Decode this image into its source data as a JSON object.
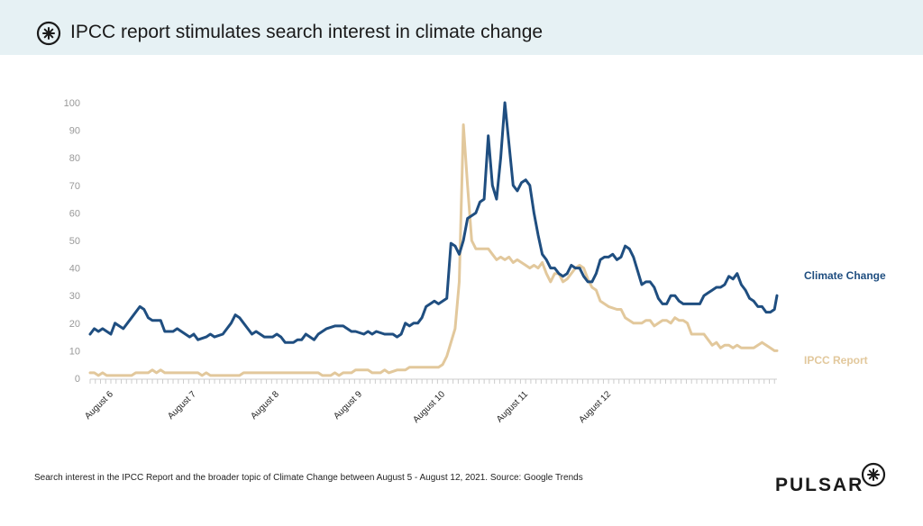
{
  "header": {
    "title": "IPCC report stimulates search interest in climate change"
  },
  "caption": "Search interest in the IPCC Report and the broader topic of Climate Change between August 5 - August 12, 2021. Source: Google Trends",
  "brand": {
    "name": "PULSAR"
  },
  "chart_data": {
    "type": "line",
    "title": "IPCC report stimulates search interest in climate change",
    "xlabel": "",
    "ylabel": "",
    "ylim": [
      0,
      100
    ],
    "yticks": [
      0,
      10,
      20,
      30,
      40,
      50,
      60,
      70,
      80,
      90,
      100
    ],
    "x_range_days": [
      0,
      7.2
    ],
    "x_ticks": [
      {
        "label": "August 6",
        "day": 0.15
      },
      {
        "label": "August 7",
        "day": 1.15
      },
      {
        "label": "August 8",
        "day": 2.15
      },
      {
        "label": "August 9",
        "day": 3.15
      },
      {
        "label": "August 10",
        "day": 4.15
      },
      {
        "label": "August 11",
        "day": 5.15
      },
      {
        "label": "August 12",
        "day": 6.15
      }
    ],
    "grid": false,
    "series": [
      {
        "name": "Climate Change",
        "color": "#1f4e80",
        "points": [
          [
            0,
            16
          ],
          [
            0.05,
            18
          ],
          [
            0.1,
            17
          ],
          [
            0.15,
            18
          ],
          [
            0.25,
            16
          ],
          [
            0.3,
            20
          ],
          [
            0.35,
            19
          ],
          [
            0.4,
            18
          ],
          [
            0.5,
            22
          ],
          [
            0.6,
            26
          ],
          [
            0.65,
            25
          ],
          [
            0.7,
            22
          ],
          [
            0.75,
            21
          ],
          [
            0.85,
            21
          ],
          [
            0.9,
            17
          ],
          [
            1.0,
            17
          ],
          [
            1.05,
            18
          ],
          [
            1.1,
            17
          ],
          [
            1.2,
            15
          ],
          [
            1.25,
            16
          ],
          [
            1.3,
            14
          ],
          [
            1.4,
            15
          ],
          [
            1.45,
            16
          ],
          [
            1.5,
            15
          ],
          [
            1.6,
            16
          ],
          [
            1.7,
            20
          ],
          [
            1.75,
            23
          ],
          [
            1.8,
            22
          ],
          [
            1.85,
            20
          ],
          [
            1.9,
            18
          ],
          [
            1.95,
            16
          ],
          [
            2.0,
            17
          ],
          [
            2.1,
            15
          ],
          [
            2.2,
            15
          ],
          [
            2.25,
            16
          ],
          [
            2.3,
            15
          ],
          [
            2.35,
            13
          ],
          [
            2.45,
            13
          ],
          [
            2.5,
            14
          ],
          [
            2.55,
            14
          ],
          [
            2.6,
            16
          ],
          [
            2.65,
            15
          ],
          [
            2.7,
            14
          ],
          [
            2.75,
            16
          ],
          [
            2.85,
            18
          ],
          [
            2.95,
            19
          ],
          [
            3.05,
            19
          ],
          [
            3.15,
            17
          ],
          [
            3.2,
            17
          ],
          [
            3.3,
            16
          ],
          [
            3.35,
            17
          ],
          [
            3.4,
            16
          ],
          [
            3.45,
            17
          ],
          [
            3.55,
            16
          ],
          [
            3.65,
            16
          ],
          [
            3.7,
            15
          ],
          [
            3.75,
            16
          ],
          [
            3.8,
            20
          ],
          [
            3.85,
            19
          ],
          [
            3.9,
            20
          ],
          [
            3.95,
            20
          ],
          [
            4.0,
            22
          ],
          [
            4.05,
            26
          ],
          [
            4.1,
            27
          ],
          [
            4.15,
            28
          ],
          [
            4.2,
            27
          ],
          [
            4.3,
            29
          ],
          [
            4.35,
            49
          ],
          [
            4.4,
            48
          ],
          [
            4.45,
            45
          ],
          [
            4.5,
            50
          ],
          [
            4.55,
            58
          ],
          [
            4.6,
            59
          ],
          [
            4.65,
            60
          ],
          [
            4.7,
            64
          ],
          [
            4.75,
            65
          ],
          [
            4.8,
            88
          ],
          [
            4.85,
            70
          ],
          [
            4.9,
            65
          ],
          [
            4.95,
            80
          ],
          [
            5.0,
            100
          ],
          [
            5.05,
            85
          ],
          [
            5.1,
            70
          ],
          [
            5.15,
            68
          ],
          [
            5.2,
            71
          ],
          [
            5.25,
            72
          ],
          [
            5.3,
            70
          ],
          [
            5.35,
            60
          ],
          [
            5.4,
            52
          ],
          [
            5.45,
            45
          ],
          [
            5.5,
            43
          ],
          [
            5.55,
            40
          ],
          [
            5.6,
            40
          ],
          [
            5.65,
            38
          ],
          [
            5.7,
            37
          ],
          [
            5.75,
            38
          ],
          [
            5.8,
            41
          ],
          [
            5.85,
            40
          ],
          [
            5.9,
            40
          ],
          [
            5.95,
            37
          ],
          [
            6.0,
            35
          ],
          [
            6.05,
            35
          ],
          [
            6.1,
            38
          ],
          [
            6.15,
            43
          ],
          [
            6.2,
            44
          ],
          [
            6.25,
            44
          ],
          [
            6.3,
            45
          ],
          [
            6.35,
            43
          ],
          [
            6.4,
            44
          ],
          [
            6.45,
            48
          ],
          [
            6.5,
            47
          ],
          [
            6.55,
            44
          ],
          [
            6.6,
            39
          ],
          [
            6.65,
            34
          ],
          [
            6.7,
            35
          ],
          [
            6.75,
            35
          ],
          [
            6.8,
            33
          ],
          [
            6.85,
            29
          ],
          [
            6.9,
            27
          ],
          [
            6.95,
            27
          ],
          [
            7.0,
            30
          ],
          [
            7.05,
            30
          ],
          [
            7.1,
            28
          ],
          [
            7.15,
            27
          ],
          [
            7.25,
            27
          ],
          [
            7.35,
            27
          ],
          [
            7.4,
            30
          ],
          [
            7.45,
            31
          ],
          [
            7.5,
            32
          ],
          [
            7.55,
            33
          ],
          [
            7.6,
            33
          ],
          [
            7.65,
            34
          ],
          [
            7.7,
            37
          ],
          [
            7.75,
            36
          ],
          [
            7.8,
            38
          ],
          [
            7.85,
            34
          ],
          [
            7.9,
            32
          ],
          [
            7.95,
            29
          ],
          [
            8.0,
            28
          ],
          [
            8.05,
            26
          ],
          [
            8.1,
            26
          ],
          [
            8.15,
            24
          ],
          [
            8.2,
            24
          ],
          [
            8.25,
            25
          ],
          [
            8.28,
            30
          ]
        ]
      },
      {
        "name": "IPCC Report",
        "color": "#e2c89c",
        "points": [
          [
            0,
            2
          ],
          [
            0.05,
            2
          ],
          [
            0.1,
            1
          ],
          [
            0.15,
            2
          ],
          [
            0.2,
            1
          ],
          [
            0.5,
            1
          ],
          [
            0.55,
            2
          ],
          [
            0.7,
            2
          ],
          [
            0.75,
            3
          ],
          [
            0.8,
            2
          ],
          [
            0.85,
            3
          ],
          [
            0.9,
            2
          ],
          [
            1.3,
            2
          ],
          [
            1.35,
            1
          ],
          [
            1.4,
            2
          ],
          [
            1.45,
            1
          ],
          [
            1.8,
            1
          ],
          [
            1.85,
            2
          ],
          [
            2.75,
            2
          ],
          [
            2.8,
            1
          ],
          [
            2.9,
            1
          ],
          [
            2.95,
            2
          ],
          [
            3.0,
            1
          ],
          [
            3.05,
            2
          ],
          [
            3.15,
            2
          ],
          [
            3.2,
            3
          ],
          [
            3.35,
            3
          ],
          [
            3.4,
            2
          ],
          [
            3.5,
            2
          ],
          [
            3.55,
            3
          ],
          [
            3.6,
            2
          ],
          [
            3.7,
            3
          ],
          [
            3.8,
            3
          ],
          [
            3.85,
            4
          ],
          [
            4.2,
            4
          ],
          [
            4.25,
            5
          ],
          [
            4.3,
            8
          ],
          [
            4.4,
            18
          ],
          [
            4.45,
            35
          ],
          [
            4.5,
            92
          ],
          [
            4.55,
            70
          ],
          [
            4.6,
            50
          ],
          [
            4.65,
            47
          ],
          [
            4.8,
            47
          ],
          [
            4.85,
            45
          ],
          [
            4.9,
            43
          ],
          [
            4.95,
            44
          ],
          [
            5.0,
            43
          ],
          [
            5.05,
            44
          ],
          [
            5.1,
            42
          ],
          [
            5.15,
            43
          ],
          [
            5.2,
            42
          ],
          [
            5.25,
            41
          ],
          [
            5.3,
            40
          ],
          [
            5.35,
            41
          ],
          [
            5.4,
            40
          ],
          [
            5.45,
            42
          ],
          [
            5.5,
            38
          ],
          [
            5.55,
            35
          ],
          [
            5.6,
            38
          ],
          [
            5.65,
            38
          ],
          [
            5.7,
            35
          ],
          [
            5.75,
            36
          ],
          [
            5.8,
            38
          ],
          [
            5.85,
            40
          ],
          [
            5.9,
            41
          ],
          [
            5.95,
            40
          ],
          [
            6.0,
            36
          ],
          [
            6.05,
            33
          ],
          [
            6.1,
            32
          ],
          [
            6.15,
            28
          ],
          [
            6.25,
            26
          ],
          [
            6.35,
            25
          ],
          [
            6.4,
            25
          ],
          [
            6.45,
            22
          ],
          [
            6.55,
            20
          ],
          [
            6.65,
            20
          ],
          [
            6.7,
            21
          ],
          [
            6.75,
            21
          ],
          [
            6.8,
            19
          ],
          [
            6.9,
            21
          ],
          [
            6.95,
            21
          ],
          [
            7.0,
            20
          ],
          [
            7.05,
            22
          ],
          [
            7.1,
            21
          ],
          [
            7.15,
            21
          ],
          [
            7.2,
            20
          ],
          [
            7.25,
            16
          ],
          [
            7.35,
            16
          ],
          [
            7.4,
            16
          ],
          [
            7.45,
            14
          ],
          [
            7.5,
            12
          ],
          [
            7.55,
            13
          ],
          [
            7.6,
            11
          ],
          [
            7.65,
            12
          ],
          [
            7.7,
            12
          ],
          [
            7.75,
            11
          ],
          [
            7.8,
            12
          ],
          [
            7.85,
            11
          ],
          [
            7.95,
            11
          ],
          [
            8.0,
            11
          ],
          [
            8.05,
            12
          ],
          [
            8.1,
            13
          ],
          [
            8.15,
            12
          ],
          [
            8.2,
            11
          ],
          [
            8.25,
            10
          ],
          [
            8.28,
            10
          ]
        ]
      }
    ]
  }
}
